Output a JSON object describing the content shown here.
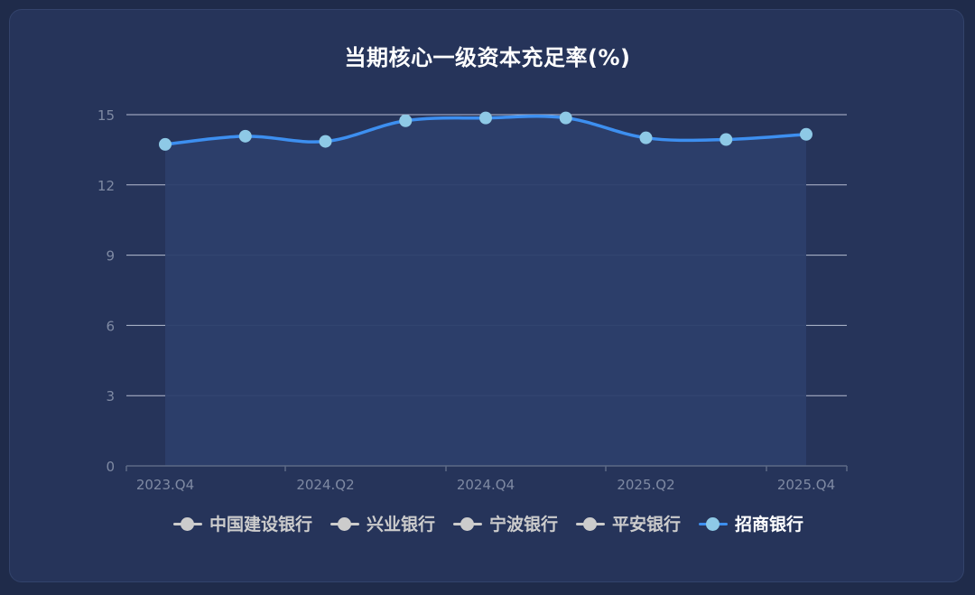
{
  "chart_data": {
    "type": "area",
    "title": "当期核心一级资本充足率(%)",
    "categories": [
      "2023.Q4",
      "2024.Q1",
      "2024.Q2",
      "2024.Q3",
      "2024.Q4",
      "2025.Q1",
      "2025.Q2",
      "2025.Q3",
      "2025.Q4"
    ],
    "x_tick_labels": [
      "2023.Q4",
      "2024.Q2",
      "2024.Q4",
      "2025.Q2",
      "2025.Q4"
    ],
    "y_ticks": [
      "0",
      "3",
      "6",
      "9",
      "12",
      "15"
    ],
    "ylim": [
      0,
      15
    ],
    "grid": true,
    "legend_position": "bottom",
    "legend": [
      {
        "name": "中国建设银行",
        "active": false
      },
      {
        "name": "兴业银行",
        "active": false
      },
      {
        "name": "宁波银行",
        "active": false
      },
      {
        "name": "平安银行",
        "active": false
      },
      {
        "name": "招商银行",
        "active": true
      }
    ],
    "series": [
      {
        "name": "招商银行",
        "values": [
          13.73,
          14.08,
          13.86,
          14.74,
          14.86,
          14.86,
          14.01,
          13.94,
          14.16
        ]
      }
    ]
  },
  "colors": {
    "line": "#3d8ff0",
    "marker": "#8ec9e6",
    "area": "#2c3f6b",
    "grid": "#cfd6e6",
    "axis_text": "#7f8aa3",
    "legend_inactive": "#cccccc",
    "legend_active_text": "#ffffff"
  }
}
